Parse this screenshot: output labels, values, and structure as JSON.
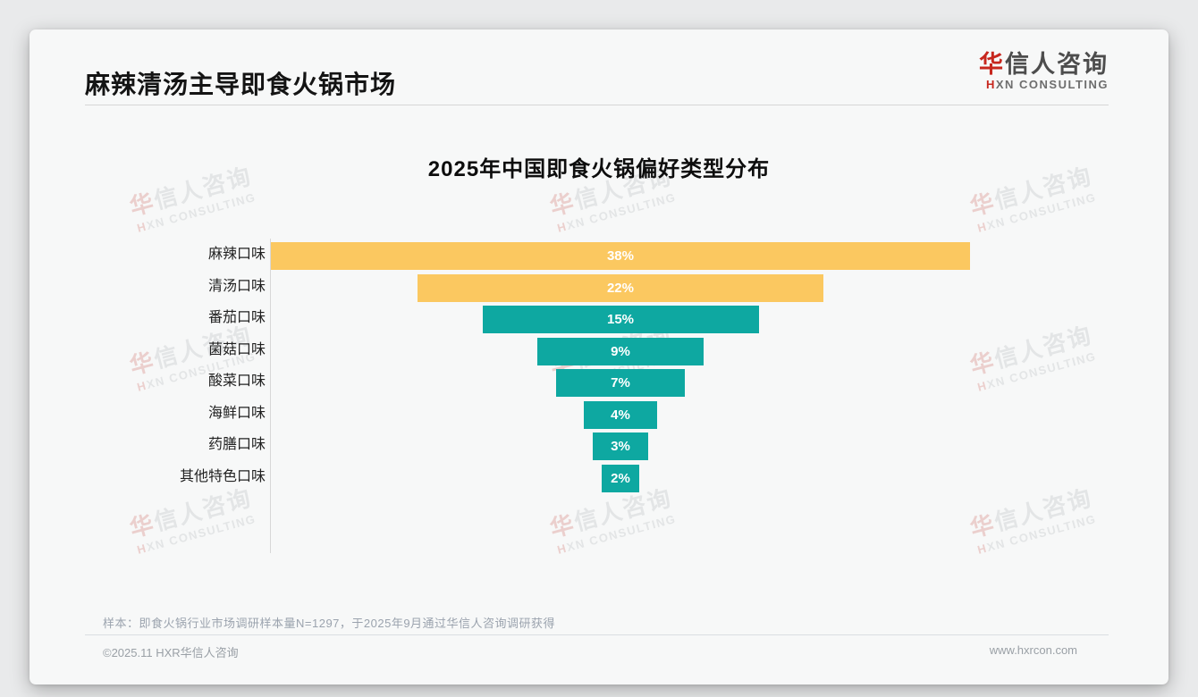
{
  "page": {
    "header": {
      "title": "麻辣清汤主导即食火锅市场"
    },
    "logo": {
      "cn_first": "华",
      "cn_rest": "信人咨询",
      "en_first": "H",
      "en_rest": "XN CONSULTING"
    },
    "watermark": {
      "line1_first": "华",
      "line1_rest": "信人咨询",
      "line2": "HXN CONSULTING"
    },
    "footnote": "样本：即食火锅行业市场调研样本量N=1297，于2025年9月通过华信人咨询调研获得",
    "footer": {
      "left": "©2025.11 HXR华信人咨询",
      "right": "www.hxrcon.com"
    }
  },
  "chart_data": {
    "type": "bar",
    "subtype": "horizontal-centered-funnel",
    "title": "2025年中国即食火锅偏好类型分布",
    "categories": [
      "麻辣口味",
      "清汤口味",
      "番茄口味",
      "菌菇口味",
      "酸菜口味",
      "海鲜口味",
      "药膳口味",
      "其他特色口味"
    ],
    "values": [
      38,
      22,
      15,
      9,
      7,
      4,
      3,
      2
    ],
    "unit": "%",
    "value_labels": [
      "38%",
      "22%",
      "15%",
      "9%",
      "7%",
      "4%",
      "3%",
      "2%"
    ],
    "highlight_color": "#fbc860",
    "default_color": "#0ea8a1",
    "highlight_count": 2,
    "value_label_color": "#ffffff",
    "axis_line_color": "#d8d8d8",
    "legend": "none",
    "grid": "off"
  }
}
